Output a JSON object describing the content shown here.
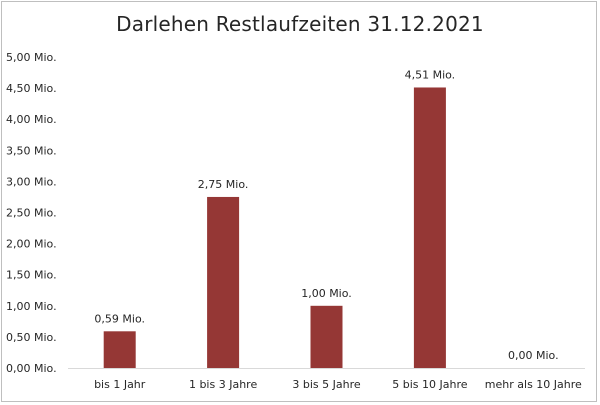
{
  "chart_data": {
    "type": "bar",
    "title": "Darlehen Restlaufzeiten 31.12.2021",
    "categories": [
      "bis 1 Jahr",
      "1 bis 3 Jahre",
      "3 bis 5 Jahre",
      "5 bis 10 Jahre",
      "mehr als 10 Jahre"
    ],
    "values": [
      0.59,
      2.75,
      1.0,
      4.51,
      0.0
    ],
    "data_labels": [
      "0,59 Mio.",
      "2,75 Mio.",
      "1,00 Mio.",
      "4,51 Mio.",
      "0,00 Mio."
    ],
    "yticks": [
      0,
      0.5,
      1,
      1.5,
      2,
      2.5,
      3,
      3.5,
      4,
      4.5,
      5
    ],
    "ytick_labels": [
      "0,00 Mio.",
      "0,50 Mio.",
      "1,00 Mio.",
      "1,50 Mio.",
      "2,00 Mio.",
      "2,50 Mio.",
      "3,00 Mio.",
      "3,50 Mio.",
      "4,00 Mio.",
      "4,50 Mio.",
      "5,00 Mio."
    ],
    "ylim": [
      0,
      5
    ],
    "grid": false,
    "legend": "none",
    "bar_color": "#953735",
    "axis_color": "#d9d9d9"
  }
}
